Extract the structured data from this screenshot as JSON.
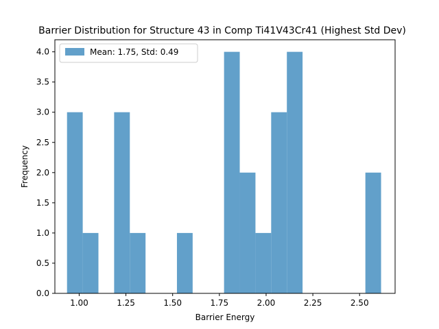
{
  "chart_data": {
    "type": "histogram",
    "title": "Barrier Distribution for Structure 43 in Comp Ti41V43Cr41 (Highest Std Dev)",
    "xlabel": "Barrier Energy",
    "ylabel": "Frequency",
    "xlim": [
      0.87,
      2.69
    ],
    "ylim": [
      0,
      4.2
    ],
    "bar_color": "#62a0ca",
    "bins": [
      {
        "x0": 0.935,
        "x1": 1.019,
        "count": 3
      },
      {
        "x0": 1.019,
        "x1": 1.103,
        "count": 1
      },
      {
        "x0": 1.103,
        "x1": 1.187,
        "count": 0
      },
      {
        "x0": 1.187,
        "x1": 1.271,
        "count": 3
      },
      {
        "x0": 1.271,
        "x1": 1.355,
        "count": 1
      },
      {
        "x0": 1.355,
        "x1": 1.439,
        "count": 0
      },
      {
        "x0": 1.439,
        "x1": 1.523,
        "count": 0
      },
      {
        "x0": 1.523,
        "x1": 1.607,
        "count": 1
      },
      {
        "x0": 1.607,
        "x1": 1.691,
        "count": 0
      },
      {
        "x0": 1.691,
        "x1": 1.775,
        "count": 0
      },
      {
        "x0": 1.775,
        "x1": 1.859,
        "count": 4
      },
      {
        "x0": 1.859,
        "x1": 1.943,
        "count": 2
      },
      {
        "x0": 1.943,
        "x1": 2.027,
        "count": 1
      },
      {
        "x0": 2.027,
        "x1": 2.111,
        "count": 3
      },
      {
        "x0": 2.111,
        "x1": 2.195,
        "count": 4
      },
      {
        "x0": 2.195,
        "x1": 2.279,
        "count": 0
      },
      {
        "x0": 2.279,
        "x1": 2.363,
        "count": 0
      },
      {
        "x0": 2.363,
        "x1": 2.447,
        "count": 0
      },
      {
        "x0": 2.447,
        "x1": 2.531,
        "count": 0
      },
      {
        "x0": 2.531,
        "x1": 2.615,
        "count": 2
      }
    ],
    "xticks": [
      1.0,
      1.25,
      1.5,
      1.75,
      2.0,
      2.25,
      2.5
    ],
    "xtick_labels": [
      "1.00",
      "1.25",
      "1.50",
      "1.75",
      "2.00",
      "2.25",
      "2.50"
    ],
    "yticks": [
      0.0,
      0.5,
      1.0,
      1.5,
      2.0,
      2.5,
      3.0,
      3.5,
      4.0
    ],
    "ytick_labels": [
      "0.0",
      "0.5",
      "1.0",
      "1.5",
      "2.0",
      "2.5",
      "3.0",
      "3.5",
      "4.0"
    ],
    "legend": {
      "placement": "top-left",
      "label": "Mean: 1.75, Std: 0.49"
    },
    "grid": false
  }
}
